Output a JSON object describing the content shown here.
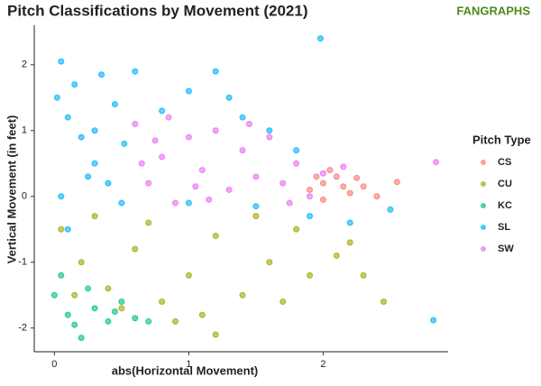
{
  "chart_data": {
    "type": "scatter",
    "title": "Pitch Classifications by Movement (2021)",
    "logo": "FANGRAPHS",
    "x_label": "abs(Horizontal Movement)",
    "y_label": "Vertical Movement (in feet)",
    "legend_title": "Pitch Type",
    "legend_position": "right",
    "grid": false,
    "xlim": [
      -0.15,
      2.93
    ],
    "xticks": [
      0,
      1,
      2
    ],
    "ylim": [
      -2.36,
      2.6
    ],
    "yticks": [
      -2,
      -1,
      0,
      1,
      2
    ],
    "series": [
      {
        "name": "CS",
        "color": "#F8766D",
        "x": [
          1.9,
          2.0,
          2.1,
          2.2,
          2.3,
          2.4,
          2.55,
          2.0,
          2.15,
          1.95,
          2.25,
          2.05
        ],
        "y": [
          0.1,
          0.2,
          0.3,
          0.05,
          0.15,
          0.0,
          0.22,
          -0.05,
          0.15,
          0.3,
          0.28,
          0.4
        ]
      },
      {
        "name": "CU",
        "color": "#A3A500",
        "x": [
          0.05,
          0.2,
          0.4,
          0.6,
          0.8,
          1.0,
          1.2,
          1.4,
          1.6,
          1.8,
          1.9,
          2.1,
          2.3,
          2.45,
          1.2,
          0.9,
          0.3,
          0.7,
          1.1,
          1.5,
          1.7,
          0.5,
          2.2,
          0.15
        ],
        "y": [
          -0.5,
          -1.0,
          -1.4,
          -0.8,
          -1.6,
          -1.2,
          -0.6,
          -1.5,
          -1.0,
          -0.5,
          -1.2,
          -0.9,
          -1.2,
          -1.6,
          -2.1,
          -1.9,
          -0.3,
          -0.4,
          -1.8,
          -0.3,
          -1.6,
          -1.7,
          -0.7,
          -1.5
        ]
      },
      {
        "name": "KC",
        "color": "#00BF7D",
        "x": [
          0.0,
          0.1,
          0.2,
          0.3,
          0.4,
          0.5,
          0.6,
          0.05,
          0.25,
          0.45,
          0.7,
          0.15
        ],
        "y": [
          -1.5,
          -1.8,
          -2.15,
          -1.7,
          -1.9,
          -1.6,
          -1.85,
          -1.2,
          -1.4,
          -1.75,
          -1.9,
          -1.95
        ]
      },
      {
        "name": "SL",
        "color": "#00B0F6",
        "x": [
          0.02,
          0.1,
          0.2,
          0.3,
          0.4,
          0.5,
          0.05,
          0.15,
          0.35,
          0.45,
          0.25,
          0.52,
          0.8,
          1.0,
          1.2,
          1.4,
          1.6,
          1.8,
          1.9,
          2.2,
          2.5,
          1.98,
          2.82,
          0.05,
          0.6,
          1.0,
          1.5,
          0.1,
          0.3,
          1.3
        ],
        "y": [
          1.5,
          1.2,
          0.9,
          0.5,
          0.2,
          -0.1,
          0.0,
          1.7,
          1.85,
          1.4,
          0.3,
          0.8,
          1.3,
          1.6,
          1.9,
          1.2,
          1.0,
          0.7,
          -0.3,
          -0.4,
          -0.2,
          2.4,
          -1.88,
          2.05,
          1.9,
          -0.1,
          -0.15,
          -0.5,
          1.0,
          1.5
        ]
      },
      {
        "name": "SW",
        "color": "#E76BF3",
        "x": [
          0.6,
          0.7,
          0.8,
          0.9,
          1.0,
          1.1,
          1.2,
          1.3,
          1.4,
          1.5,
          1.6,
          1.7,
          1.8,
          1.9,
          2.0,
          0.65,
          0.85,
          1.15,
          1.45,
          1.75,
          2.84,
          2.15,
          0.75,
          1.05
        ],
        "y": [
          1.1,
          0.2,
          0.6,
          -0.1,
          0.9,
          0.4,
          1.0,
          0.1,
          0.7,
          0.3,
          0.9,
          0.2,
          0.5,
          0.0,
          0.35,
          0.5,
          1.2,
          -0.05,
          1.1,
          -0.1,
          0.52,
          0.45,
          0.85,
          0.15
        ]
      }
    ]
  }
}
